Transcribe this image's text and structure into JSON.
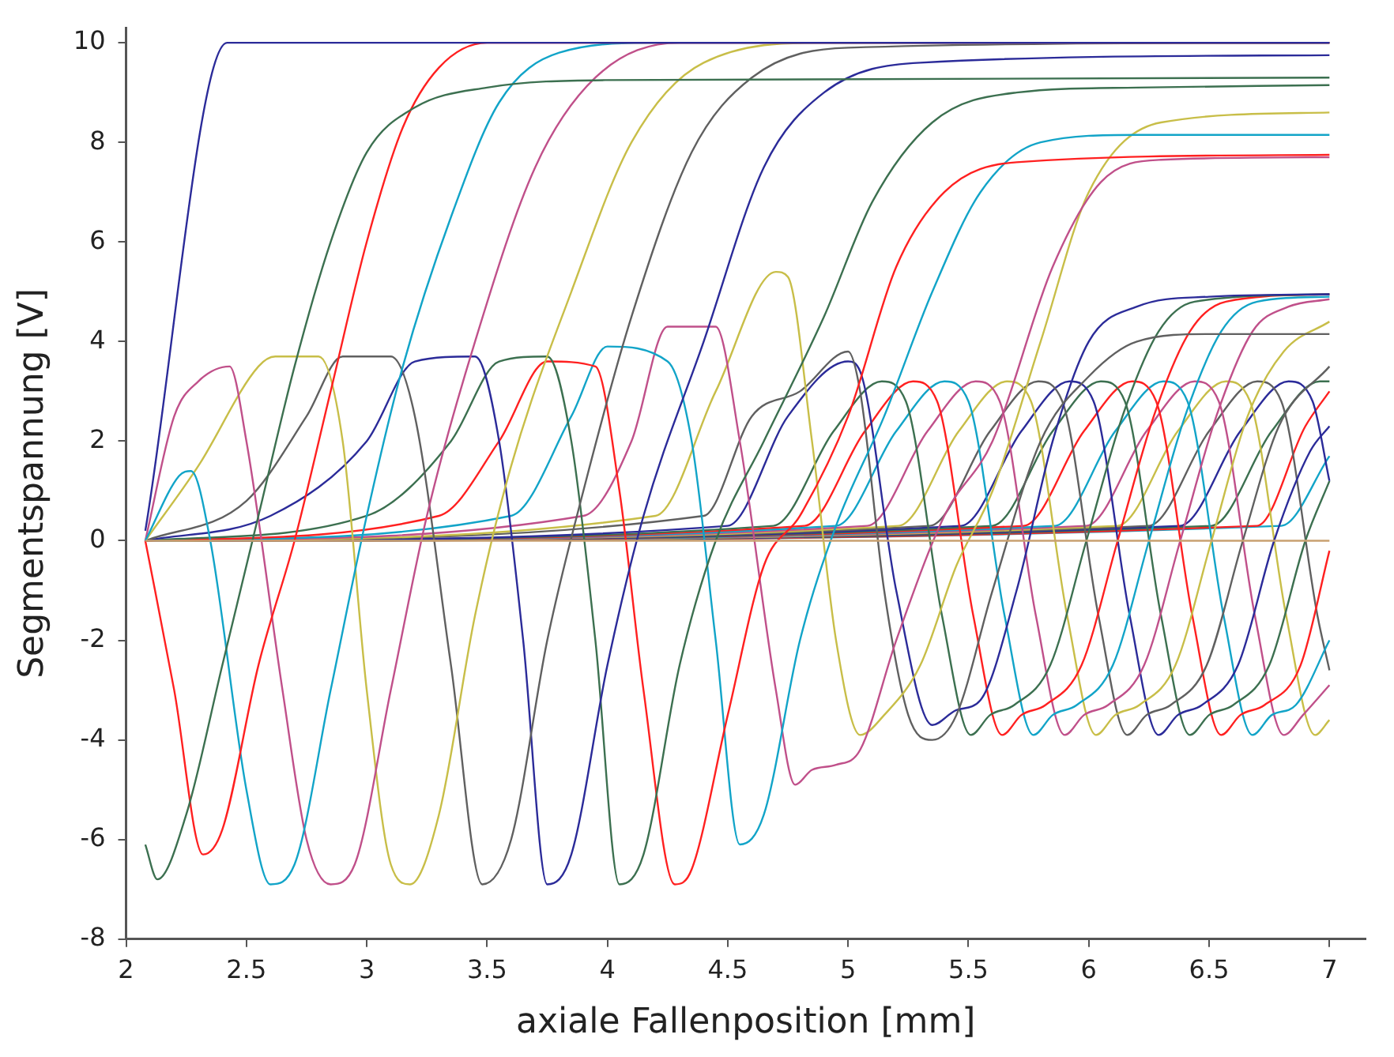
{
  "chart_data": {
    "type": "line",
    "xlabel": "axiale Fallenposition [mm]",
    "ylabel": "Segmentspannung [V]",
    "xlim": [
      2,
      7.15
    ],
    "ylim": [
      -8,
      10.3
    ],
    "xticks": [
      2,
      2.5,
      3,
      3.5,
      4,
      4.5,
      5,
      5.5,
      6,
      6.5,
      7
    ],
    "yticks": [
      -8,
      -6,
      -4,
      -2,
      0,
      2,
      4,
      6,
      8,
      10
    ],
    "grid": false,
    "legend": false,
    "marker": "none",
    "line_style": "solid",
    "series": [
      {
        "color": "#c8a070",
        "x": [
          2.08,
          7
        ],
        "values": [
          0,
          0
        ]
      },
      {
        "color": "#2b2b99",
        "x": [
          2.08,
          2.42,
          7
        ],
        "values": [
          0.2,
          10,
          10
        ]
      },
      {
        "color": "#3c7050",
        "x": [
          2.08,
          2.13,
          2.25,
          2.4,
          2.55,
          2.7,
          2.85,
          3.0,
          3.2,
          3.5,
          4,
          7
        ],
        "values": [
          -6.1,
          -6.8,
          -5.5,
          -2.5,
          0.5,
          3.5,
          6,
          7.8,
          8.7,
          9.1,
          9.25,
          9.3
        ]
      },
      {
        "color": "#ff2020",
        "x": [
          2.08,
          2.2,
          2.32,
          2.4,
          2.55,
          2.7,
          2.85,
          3.0,
          3.15,
          3.3,
          3.5,
          7
        ],
        "values": [
          0,
          -3,
          -6.3,
          -5.8,
          -2.5,
          0,
          3,
          6,
          8.3,
          9.5,
          10,
          10
        ]
      },
      {
        "color": "#12a4c8",
        "x": [
          2.08,
          2.22,
          2.27,
          2.35,
          2.5,
          2.6,
          2.7,
          2.85,
          3.0,
          3.15,
          3.35,
          3.55,
          3.8,
          4.2,
          7
        ],
        "values": [
          0,
          1.3,
          1.4,
          0,
          -5,
          -6.9,
          -6.5,
          -3,
          0.5,
          3.5,
          6.5,
          8.8,
          9.8,
          10,
          10
        ]
      },
      {
        "color": "#c0508a",
        "x": [
          2.08,
          2.2,
          2.3,
          2.43,
          2.5,
          2.65,
          2.75,
          2.85,
          2.95,
          3.1,
          3.25,
          3.45,
          3.7,
          3.95,
          4.3,
          7
        ],
        "values": [
          0,
          2.5,
          3.2,
          3.5,
          2,
          -3,
          -6,
          -6.9,
          -6.5,
          -3,
          0.5,
          4,
          7.5,
          9.3,
          10,
          10
        ]
      },
      {
        "color": "#c8be48",
        "x": [
          2.08,
          2.3,
          2.55,
          2.62,
          2.8,
          2.9,
          3.0,
          3.1,
          3.18,
          3.3,
          3.45,
          3.6,
          3.85,
          4.1,
          4.4,
          4.9,
          7
        ],
        "values": [
          0,
          1.5,
          3.5,
          3.7,
          3.7,
          2,
          -3,
          -6.5,
          -6.9,
          -5.5,
          -1.5,
          1.5,
          5,
          8,
          9.6,
          10,
          10
        ]
      },
      {
        "color": "#606060",
        "x": [
          2.08,
          2.5,
          2.75,
          2.9,
          3.1,
          3.2,
          3.35,
          3.48,
          3.6,
          3.75,
          3.9,
          4.1,
          4.35,
          4.6,
          5,
          7
        ],
        "values": [
          0,
          0.8,
          2.5,
          3.7,
          3.7,
          2.5,
          -2.5,
          -6.9,
          -6,
          -2,
          1,
          4.5,
          7.8,
          9.3,
          9.9,
          10
        ]
      },
      {
        "color": "#2b2b99",
        "x": [
          2.08,
          2.6,
          3.0,
          3.2,
          3.45,
          3.55,
          3.65,
          3.75,
          3.85,
          4.0,
          4.15,
          4.4,
          4.65,
          4.9,
          5.3,
          7
        ],
        "values": [
          0,
          0.5,
          2,
          3.6,
          3.7,
          2,
          -2,
          -6.9,
          -6.3,
          -2.5,
          0.5,
          4,
          7.5,
          9,
          9.6,
          9.75
        ]
      },
      {
        "color": "#3c7050",
        "x": [
          2.08,
          3.0,
          3.35,
          3.55,
          3.75,
          3.85,
          3.95,
          4.05,
          4.15,
          4.3,
          4.45,
          4.65,
          4.9,
          5.1,
          5.35,
          5.7,
          6.2,
          7
        ],
        "values": [
          0,
          0.5,
          2,
          3.6,
          3.7,
          2,
          -2,
          -6.9,
          -6.3,
          -2.5,
          0,
          2,
          4.5,
          6.8,
          8.4,
          9.0,
          9.1,
          9.15
        ]
      },
      {
        "color": "#ff2020",
        "x": [
          2.08,
          3.3,
          3.55,
          3.75,
          3.95,
          4.05,
          4.15,
          4.28,
          4.35,
          4.5,
          4.65,
          4.8,
          5.0,
          5.2,
          5.4,
          5.7,
          7
        ],
        "values": [
          0,
          0.5,
          2,
          3.6,
          3.5,
          1,
          -3,
          -6.9,
          -6.6,
          -3.5,
          -0.5,
          0.5,
          2.5,
          5.5,
          7,
          7.6,
          7.75
        ]
      },
      {
        "color": "#12a4c8",
        "x": [
          2.08,
          3.6,
          3.85,
          4.0,
          4.25,
          4.35,
          4.45,
          4.55,
          4.65,
          4.8,
          4.95,
          5.15,
          5.35,
          5.55,
          5.8,
          6.2,
          7
        ],
        "values": [
          0,
          0.5,
          2.5,
          3.9,
          3.6,
          2,
          -2,
          -6.1,
          -5.5,
          -2,
          0.3,
          2.5,
          5,
          7,
          8,
          8.15,
          8.15
        ]
      },
      {
        "color": "#c0508a",
        "x": [
          2.08,
          3.9,
          4.1,
          4.25,
          4.45,
          4.55,
          4.7,
          4.78,
          4.85,
          4.95,
          5.05,
          5.2,
          5.4,
          5.6,
          5.85,
          6.05,
          6.3,
          7
        ],
        "values": [
          0,
          0.5,
          2,
          4.3,
          4.3,
          2,
          -3,
          -4.9,
          -4.6,
          -4.5,
          -4.2,
          -2,
          0.5,
          2,
          5.5,
          7.2,
          7.65,
          7.7
        ]
      },
      {
        "color": "#c8be48",
        "x": [
          2.08,
          4.2,
          4.45,
          4.7,
          4.75,
          4.85,
          4.95,
          5.05,
          5.15,
          5.3,
          5.45,
          5.6,
          5.8,
          6.0,
          6.3,
          7
        ],
        "values": [
          0,
          0.5,
          3,
          5.4,
          5.3,
          2,
          -2,
          -3.9,
          -3.5,
          -2.5,
          -0.5,
          1,
          4,
          7,
          8.4,
          8.6
        ]
      },
      {
        "color": "#606060",
        "x": [
          2.08,
          4.4,
          4.6,
          4.8,
          5.0,
          5.05,
          5.15,
          5.25,
          5.35,
          5.45,
          5.6,
          5.8,
          6.0,
          6.2,
          6.5,
          7
        ],
        "values": [
          0,
          0.5,
          2.5,
          3,
          3.8,
          3,
          -1,
          -3.5,
          -4,
          -3.5,
          -1,
          2,
          3.3,
          4,
          4.15,
          4.15
        ]
      },
      {
        "color": "#2b2b99",
        "x": [
          2.08,
          4.5,
          4.75,
          5.0,
          5.05,
          5.2,
          5.35,
          5.45,
          5.55,
          5.7,
          5.85,
          6.0,
          6.2,
          6.5,
          7
        ],
        "values": [
          0,
          0.3,
          2.5,
          3.6,
          3.4,
          -1,
          -3.7,
          -3.4,
          -3.2,
          -1,
          2,
          4,
          4.7,
          4.9,
          4.95
        ]
      },
      {
        "color": "#3c7050",
        "x": [
          2.08,
          4.69,
          4.94,
          5.14,
          5.24,
          5.39,
          5.51,
          5.59,
          5.69,
          5.84,
          5.99,
          6.14,
          6.29,
          6.44,
          7
        ],
        "values": [
          0,
          0.3,
          2.2,
          3.2,
          2.8,
          -1.5,
          -3.9,
          -3.5,
          -3.3,
          -2.5,
          0,
          2.5,
          4.2,
          4.8,
          4.95
        ]
      },
      {
        "color": "#ff2020",
        "x": [
          2.08,
          4.82,
          5.07,
          5.27,
          5.37,
          5.52,
          5.64,
          5.72,
          5.82,
          5.97,
          6.12,
          6.27,
          6.42,
          6.57,
          7
        ],
        "values": [
          0,
          0.3,
          2.2,
          3.2,
          2.8,
          -1.5,
          -3.9,
          -3.5,
          -3.3,
          -2.5,
          0,
          2.5,
          4.2,
          4.8,
          4.95
        ]
      },
      {
        "color": "#12a4c8",
        "x": [
          2.08,
          4.95,
          5.2,
          5.4,
          5.5,
          5.65,
          5.77,
          5.85,
          5.95,
          6.1,
          6.25,
          6.4,
          6.55,
          6.7,
          7
        ],
        "values": [
          0,
          0.3,
          2.2,
          3.2,
          2.8,
          -1.5,
          -3.9,
          -3.5,
          -3.3,
          -2.5,
          0,
          2.5,
          4.2,
          4.8,
          4.9
        ]
      },
      {
        "color": "#c0508a",
        "x": [
          2.08,
          5.08,
          5.33,
          5.53,
          5.63,
          5.78,
          5.9,
          5.98,
          6.08,
          6.23,
          6.38,
          6.53,
          6.68,
          6.83,
          7
        ],
        "values": [
          0,
          0.3,
          2.2,
          3.2,
          2.8,
          -1.5,
          -3.9,
          -3.5,
          -3.3,
          -2.5,
          0,
          2.5,
          4.2,
          4.7,
          4.85
        ]
      },
      {
        "color": "#c8be48",
        "x": [
          2.08,
          5.21,
          5.46,
          5.66,
          5.76,
          5.91,
          6.03,
          6.11,
          6.21,
          6.36,
          6.51,
          6.66,
          6.81,
          7
        ],
        "values": [
          0,
          0.3,
          2.2,
          3.2,
          2.8,
          -1.5,
          -3.9,
          -3.5,
          -3.3,
          -2.5,
          0,
          2.5,
          3.8,
          4.4
        ]
      },
      {
        "color": "#606060",
        "x": [
          2.08,
          5.34,
          5.59,
          5.79,
          5.89,
          6.04,
          6.16,
          6.24,
          6.34,
          6.49,
          6.64,
          6.79,
          7
        ],
        "values": [
          0,
          0.3,
          2.2,
          3.2,
          2.8,
          -1.5,
          -3.9,
          -3.5,
          -3.3,
          -2.5,
          0,
          2.3,
          3.5
        ]
      },
      {
        "color": "#2b2b99",
        "x": [
          2.08,
          5.47,
          5.72,
          5.92,
          6.02,
          6.17,
          6.29,
          6.37,
          6.47,
          6.62,
          6.77,
          6.92,
          7
        ],
        "values": [
          0,
          0.3,
          2.2,
          3.2,
          2.8,
          -1.5,
          -3.9,
          -3.5,
          -3.3,
          -2.5,
          0,
          1.8,
          2.3
        ]
      },
      {
        "color": "#3c7050",
        "x": [
          2.08,
          5.6,
          5.85,
          6.05,
          6.15,
          6.3,
          6.42,
          6.5,
          6.6,
          6.75,
          6.9,
          7
        ],
        "values": [
          0,
          0.3,
          2.2,
          3.2,
          2.8,
          -1.5,
          -3.9,
          -3.5,
          -3.3,
          -2.5,
          0,
          1.2
        ]
      },
      {
        "color": "#ff2020",
        "x": [
          2.08,
          5.73,
          5.98,
          6.18,
          6.28,
          6.43,
          6.55,
          6.63,
          6.73,
          6.88,
          7
        ],
        "values": [
          0,
          0.3,
          2.2,
          3.2,
          2.8,
          -1.5,
          -3.9,
          -3.5,
          -3.3,
          -2.5,
          -0.2
        ]
      },
      {
        "color": "#12a4c8",
        "x": [
          2.08,
          5.86,
          6.11,
          6.31,
          6.41,
          6.56,
          6.68,
          6.76,
          6.86,
          7
        ],
        "values": [
          0,
          0.3,
          2.2,
          3.2,
          2.8,
          -1.5,
          -3.9,
          -3.5,
          -3.3,
          -2
        ]
      },
      {
        "color": "#c0508a",
        "x": [
          2.08,
          5.99,
          6.24,
          6.44,
          6.54,
          6.69,
          6.81,
          6.89,
          7
        ],
        "values": [
          0,
          0.3,
          2.2,
          3.2,
          2.8,
          -1.5,
          -3.9,
          -3.5,
          -2.9
        ]
      },
      {
        "color": "#c8be48",
        "x": [
          2.08,
          6.12,
          6.37,
          6.57,
          6.67,
          6.82,
          6.94,
          7
        ],
        "values": [
          0,
          0.3,
          2.2,
          3.2,
          2.8,
          -1.5,
          -3.9,
          -3.6
        ]
      },
      {
        "color": "#606060",
        "x": [
          2.08,
          6.25,
          6.5,
          6.7,
          6.8,
          6.95,
          7
        ],
        "values": [
          0,
          0.3,
          2.2,
          3.2,
          2.8,
          -1.5,
          -2.6
        ]
      },
      {
        "color": "#2b2b99",
        "x": [
          2.08,
          6.38,
          6.63,
          6.83,
          6.93,
          7
        ],
        "values": [
          0,
          0.3,
          2.2,
          3.2,
          2.8,
          1.2
        ]
      },
      {
        "color": "#3c7050",
        "x": [
          2.08,
          6.51,
          6.76,
          6.96,
          7
        ],
        "values": [
          0,
          0.3,
          2.2,
          3.2,
          3.2
        ]
      },
      {
        "color": "#ff2020",
        "x": [
          2.08,
          6.7,
          6.9,
          7
        ],
        "values": [
          0,
          0.3,
          2.3,
          3
        ]
      },
      {
        "color": "#12a4c8",
        "x": [
          2.08,
          6.8,
          7
        ],
        "values": [
          0,
          0.3,
          1.7
        ]
      }
    ]
  }
}
